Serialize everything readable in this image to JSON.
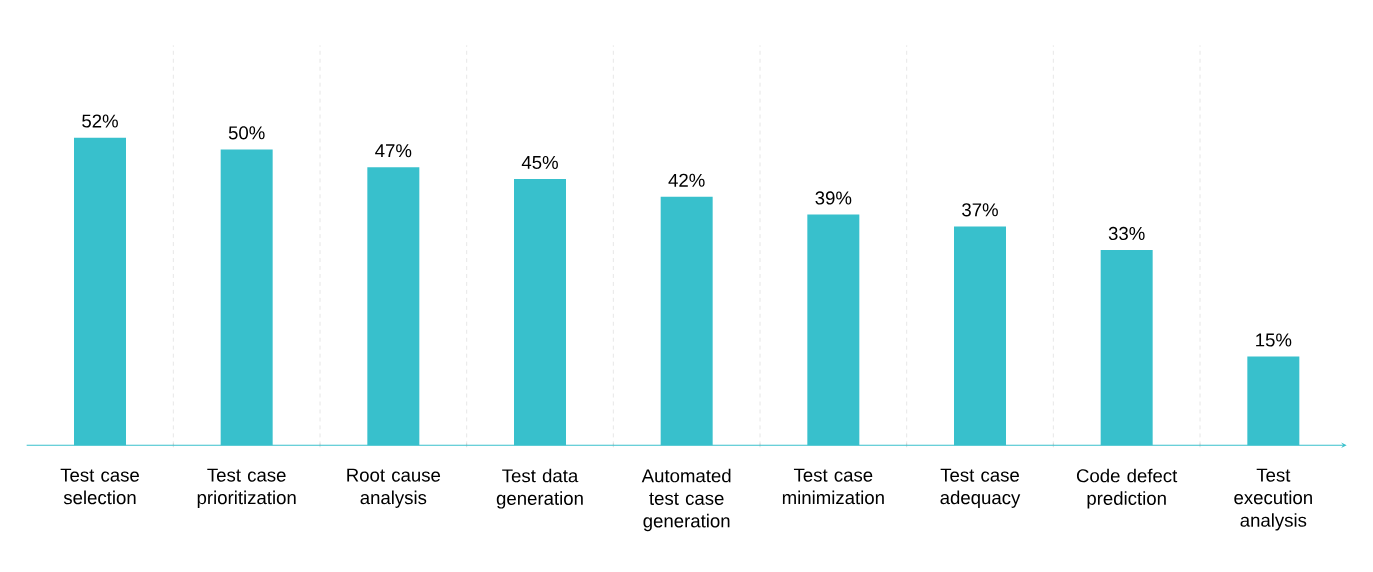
{
  "chart_data": {
    "type": "bar",
    "categories": [
      "Test case selection",
      "Test case prioritization",
      "Root cause analysis",
      "Test data generation",
      "Automated test case generation",
      "Test case minimization",
      "Test case adequacy",
      "Code defect prediction",
      "Test execution analysis"
    ],
    "values": [
      52,
      50,
      47,
      45,
      42,
      39,
      37,
      33,
      15
    ],
    "value_labels": [
      "52%",
      "50%",
      "47%",
      "45%",
      "42%",
      "39%",
      "37%",
      "33%",
      "15%"
    ],
    "color": "#38c0cc",
    "grid": "x"
  }
}
